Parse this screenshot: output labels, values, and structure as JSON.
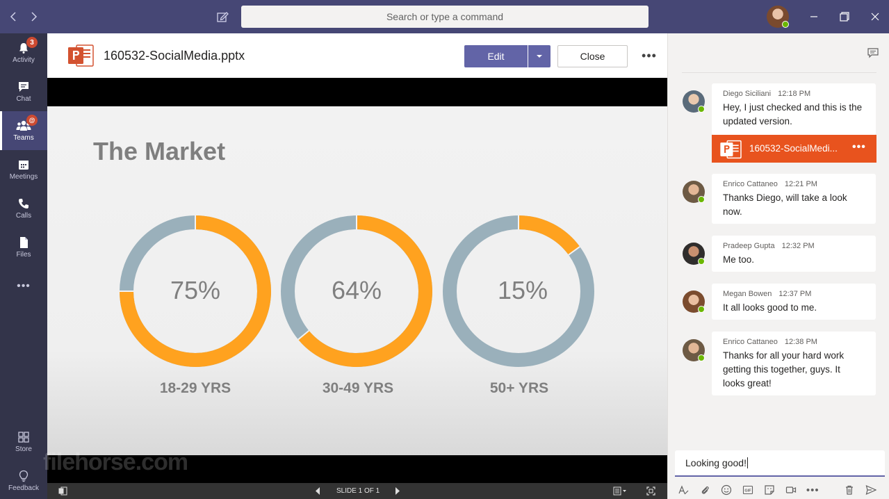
{
  "search": {
    "placeholder": "Search or type a command"
  },
  "rail": {
    "items": [
      {
        "label": "Activity",
        "badge": "3"
      },
      {
        "label": "Chat"
      },
      {
        "label": "Teams",
        "badge": "@"
      },
      {
        "label": "Meetings"
      },
      {
        "label": "Calls"
      },
      {
        "label": "Files"
      }
    ],
    "more": "•••",
    "bottom": [
      {
        "label": "Store"
      },
      {
        "label": "Feedback"
      }
    ]
  },
  "file": {
    "name": "160532-SocialMedia.pptx",
    "edit_label": "Edit",
    "close_label": "Close",
    "more": "•••"
  },
  "slide": {
    "title": "The Market",
    "charts": [
      {
        "percent": "75%",
        "value": 75,
        "label": "18-29 YRS"
      },
      {
        "percent": "64%",
        "value": 64,
        "label": "30-49 YRS"
      },
      {
        "percent": "15%",
        "value": 15,
        "label": "50+ YRS"
      }
    ],
    "counter": "SLIDE 1 OF 1",
    "colors": {
      "accent": "#ffa21f",
      "rest": "#9ab0bb"
    }
  },
  "chat": {
    "messages": [
      {
        "author": "Diego Siciliani",
        "time": "12:18 PM",
        "text": "Hey, I just checked and this is the updated version.",
        "attachment": "160532-SocialMedi..."
      },
      {
        "author": "Enrico Cattaneo",
        "time": "12:21 PM",
        "text": "Thanks Diego, will take a look now."
      },
      {
        "author": "Pradeep Gupta",
        "time": "12:32 PM",
        "text": "Me too."
      },
      {
        "author": "Megan Bowen",
        "time": "12:37 PM",
        "text": "It all looks good to me."
      },
      {
        "author": "Enrico Cattaneo",
        "time": "12:38 PM",
        "text": "Thanks for all your hard work getting this together, guys. It looks great!"
      }
    ],
    "compose_value": "Looking good!",
    "attachment_more": "•••"
  },
  "watermark": "filehorse.com"
}
